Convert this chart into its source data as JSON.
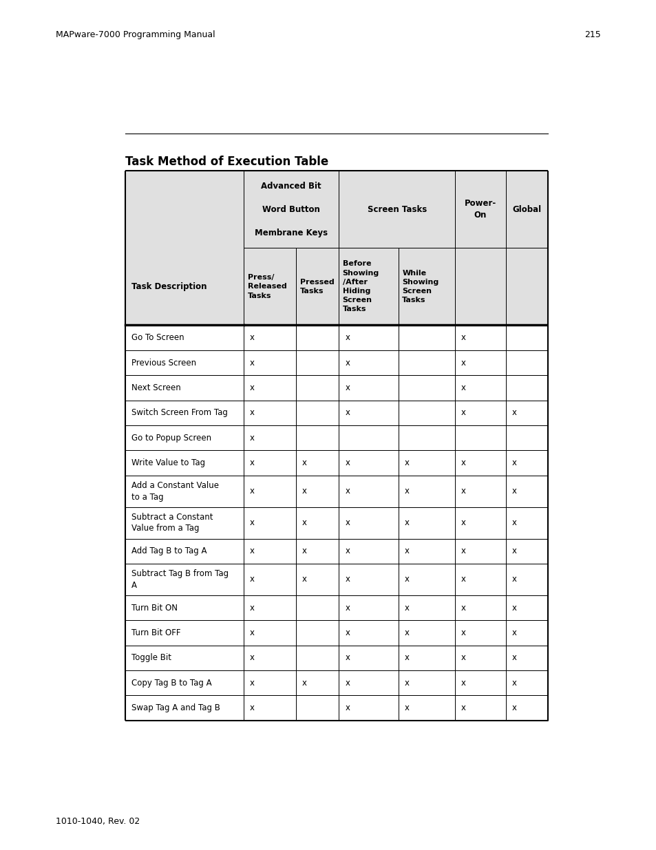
{
  "page_header": "MAPware-7000 Programming Manual",
  "page_number": "215",
  "page_footer": "1010-1040, Rev. 02",
  "title": "Task Method of Execution Table",
  "background_color": "#ffffff",
  "header_bg": "#e0e0e0",
  "sub_headers": [
    "Press/\nReleased\nTasks",
    "Pressed\nTasks",
    "Before\nShowing\n/After\nHiding\nScreen\nTasks",
    "While\nShowing\nScreen\nTasks"
  ],
  "rows": [
    {
      "desc": "Go To Screen",
      "cols": [
        "x",
        "",
        "x",
        "",
        "x",
        ""
      ]
    },
    {
      "desc": "Previous Screen",
      "cols": [
        "x",
        "",
        "x",
        "",
        "x",
        ""
      ]
    },
    {
      "desc": "Next Screen",
      "cols": [
        "x",
        "",
        "x",
        "",
        "x",
        ""
      ]
    },
    {
      "desc": "Switch Screen From Tag",
      "cols": [
        "x",
        "",
        "x",
        "",
        "x",
        "x"
      ]
    },
    {
      "desc": "Go to Popup Screen",
      "cols": [
        "x",
        "",
        "",
        "",
        "",
        ""
      ]
    },
    {
      "desc": "Write Value to Tag",
      "cols": [
        "x",
        "x",
        "x",
        "x",
        "x",
        "x"
      ]
    },
    {
      "desc": "Add a Constant Value\nto a Tag",
      "cols": [
        "x",
        "x",
        "x",
        "x",
        "x",
        "x"
      ]
    },
    {
      "desc": "Subtract a Constant\nValue from a Tag",
      "cols": [
        "x",
        "x",
        "x",
        "x",
        "x",
        "x"
      ]
    },
    {
      "desc": "Add Tag B to Tag A",
      "cols": [
        "x",
        "x",
        "x",
        "x",
        "x",
        "x"
      ]
    },
    {
      "desc": "Subtract Tag B from Tag\nA",
      "cols": [
        "x",
        "x",
        "x",
        "x",
        "x",
        "x"
      ]
    },
    {
      "desc": "Turn Bit ON",
      "cols": [
        "x",
        "",
        "x",
        "x",
        "x",
        "x"
      ]
    },
    {
      "desc": "Turn Bit OFF",
      "cols": [
        "x",
        "",
        "x",
        "x",
        "x",
        "x"
      ]
    },
    {
      "desc": "Toggle Bit",
      "cols": [
        "x",
        "",
        "x",
        "x",
        "x",
        "x"
      ]
    },
    {
      "desc": "Copy Tag B to Tag A",
      "cols": [
        "x",
        "x",
        "x",
        "x",
        "x",
        "x"
      ]
    },
    {
      "desc": "Swap Tag A and Tag B",
      "cols": [
        "x",
        "",
        "x",
        "x",
        "x",
        "x"
      ]
    }
  ]
}
